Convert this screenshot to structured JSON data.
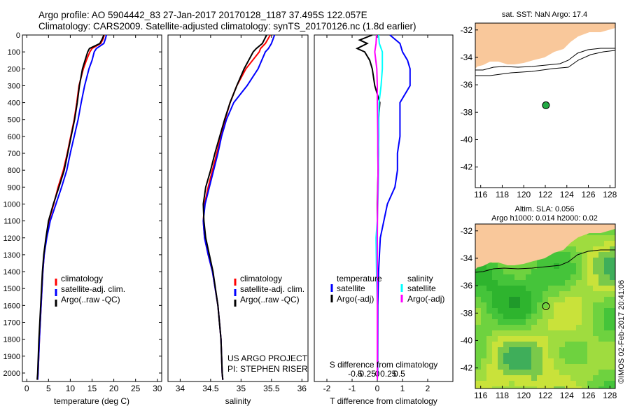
{
  "header": {
    "line1": "Argo profile: AO 5904442_83 27-Jan-2017 20170128_1187 37.495S 122.057E",
    "line2": "Climatology: CARS2009. Satellite-adjusted climatology: synTS_20170126.nc (1.8d earlier)"
  },
  "colors": {
    "climatology": "#ff0000",
    "satellite": "#0000ff",
    "argo": "#000000",
    "argo_salinity": "#ff00ff",
    "satellite_salinity": "#00ffff",
    "land": "#f9c89b",
    "argo_marker": "#22aa44"
  },
  "chart_data": [
    {
      "id": "temperature",
      "type": "line",
      "xlabel": "temperature (deg C)",
      "ylabel": "",
      "xlim": [
        -1,
        31
      ],
      "ylim": [
        2050,
        0
      ],
      "xticks": [
        0,
        5,
        10,
        15,
        20,
        25,
        30
      ],
      "yticks": [
        0,
        100,
        200,
        300,
        400,
        500,
        600,
        700,
        800,
        900,
        1000,
        1100,
        1200,
        1300,
        1400,
        1500,
        1600,
        1700,
        1800,
        1900,
        2000
      ],
      "legend": [
        "climatology",
        "satellite-adj. clim.",
        "Argo(..raw -QC)"
      ],
      "series": [
        {
          "name": "climatology",
          "color": "#ff0000",
          "depth": [
            0,
            20,
            50,
            80,
            100,
            150,
            200,
            300,
            400,
            500,
            600,
            700,
            800,
            900,
            1000,
            1100,
            1200,
            1300,
            1400,
            1600,
            1800,
            2000,
            2040
          ],
          "values": [
            17.8,
            17.6,
            17.0,
            15.0,
            14.5,
            13.7,
            13.0,
            12.0,
            11.5,
            10.9,
            10.1,
            9.3,
            8.4,
            7.2,
            6.2,
            5.1,
            4.5,
            4.0,
            3.7,
            3.3,
            2.9,
            2.6,
            2.5
          ]
        },
        {
          "name": "satellite-adj. clim.",
          "color": "#0000ff",
          "depth": [
            0,
            20,
            50,
            80,
            100,
            150,
            200,
            300,
            400,
            500,
            600,
            700,
            800,
            900,
            1000,
            1100,
            1200,
            1300,
            1400,
            1600,
            1800,
            2000,
            2040
          ],
          "values": [
            18.3,
            18.1,
            17.7,
            16.0,
            15.5,
            15.0,
            14.3,
            13.3,
            12.5,
            11.8,
            10.9,
            10.0,
            9.2,
            8.0,
            6.7,
            5.4,
            4.6,
            4.0,
            3.7,
            3.3,
            2.9,
            2.6,
            2.5
          ]
        },
        {
          "name": "Argo(..raw -QC)",
          "color": "#000000",
          "depth": [
            0,
            20,
            50,
            80,
            100,
            150,
            200,
            300,
            400,
            500,
            600,
            700,
            800,
            900,
            1000,
            1100,
            1200,
            1300,
            1400,
            1600,
            1800,
            2000,
            2040
          ],
          "values": [
            17.7,
            17.4,
            16.8,
            14.4,
            14.0,
            13.4,
            12.8,
            12.1,
            11.6,
            11.0,
            10.2,
            9.4,
            8.6,
            7.4,
            6.1,
            5.0,
            4.4,
            3.9,
            3.6,
            3.2,
            2.8,
            2.5,
            2.4
          ]
        }
      ]
    },
    {
      "id": "salinity",
      "type": "line",
      "xlabel": "salinity",
      "ylabel": "",
      "xlim": [
        33.8,
        36.1
      ],
      "ylim": [
        2050,
        0
      ],
      "xticks": [
        34,
        34.5,
        35,
        35.5,
        36
      ],
      "xtick_labels": [
        "34",
        "34.5",
        "35",
        "35.5",
        "36"
      ],
      "legend": [
        "climatology",
        "satellite-adj. clim.",
        "Argo(..raw -QC)"
      ],
      "annotation": [
        "US ARGO PROJECT",
        "PI: STEPHEN RISER"
      ],
      "series": [
        {
          "name": "climatology",
          "color": "#ff0000",
          "depth": [
            0,
            50,
            80,
            100,
            200,
            300,
            400,
            500,
            600,
            700,
            800,
            900,
            1000,
            1100,
            1200,
            1300,
            1400,
            1600,
            1800,
            2000,
            2040
          ],
          "values": [
            35.48,
            35.4,
            35.32,
            35.3,
            35.08,
            34.93,
            34.82,
            34.74,
            34.67,
            34.6,
            34.53,
            34.46,
            34.4,
            34.38,
            34.4,
            34.46,
            34.53,
            34.62,
            34.67,
            34.69,
            34.7
          ]
        },
        {
          "name": "satellite-adj. clim.",
          "color": "#0000ff",
          "depth": [
            0,
            50,
            80,
            100,
            200,
            300,
            400,
            500,
            600,
            700,
            800,
            900,
            1000,
            1100,
            1200,
            1300,
            1400,
            1600,
            1800,
            2000,
            2040
          ],
          "values": [
            35.55,
            35.5,
            35.45,
            35.4,
            35.28,
            35.1,
            34.88,
            34.76,
            34.68,
            34.62,
            34.55,
            34.48,
            34.41,
            34.38,
            34.4,
            34.46,
            34.53,
            34.62,
            34.67,
            34.69,
            34.7
          ]
        },
        {
          "name": "Argo(..raw -QC)",
          "color": "#000000",
          "depth": [
            0,
            50,
            80,
            100,
            200,
            300,
            400,
            500,
            600,
            700,
            800,
            900,
            1000,
            1100,
            1200,
            1300,
            1400,
            1600,
            1800,
            2000,
            2040
          ],
          "values": [
            35.42,
            35.35,
            35.25,
            35.2,
            35.05,
            34.93,
            34.82,
            34.73,
            34.65,
            34.57,
            34.5,
            34.42,
            34.38,
            34.39,
            34.42,
            34.48,
            34.54,
            34.62,
            34.67,
            34.69,
            34.7
          ]
        }
      ]
    },
    {
      "id": "difference",
      "type": "line",
      "xlabel": "T difference from climatology",
      "xlabel_top": "S difference from climatology",
      "xlim": [
        -2.5,
        3
      ],
      "ylim": [
        2050,
        0
      ],
      "xticks": [
        -2,
        -1,
        0,
        1,
        2
      ],
      "xtick_labels": [
        "-2",
        "-1",
        "0",
        "1",
        "2"
      ],
      "s_ticks": [
        -0.5,
        -0.25,
        0,
        0.25,
        0.5
      ],
      "s_tick_labels": [
        "-0.5",
        "-0.25",
        "0",
        "0.25",
        "0.5"
      ],
      "legend_left": [
        "temperature",
        "satellite",
        "Argo(-adj)"
      ],
      "legend_right": [
        "salinity",
        "satellite",
        "Argo(-adj)"
      ],
      "series": [
        {
          "name": "T satellite",
          "color": "#0000ff",
          "depth": [
            0,
            50,
            100,
            150,
            200,
            300,
            400,
            500,
            600,
            700,
            800,
            900,
            1000,
            1200,
            1400,
            1600,
            2000,
            2040
          ],
          "values": [
            0.5,
            0.9,
            1.0,
            1.2,
            1.3,
            1.3,
            0.9,
            0.9,
            0.9,
            0.8,
            0.8,
            0.7,
            0.4,
            0.12,
            0.05,
            0.02,
            0.01,
            0.0
          ]
        },
        {
          "name": "T Argo(-adj)",
          "color": "#000000",
          "depth": [
            0,
            30,
            50,
            80,
            100,
            150,
            200,
            300,
            400,
            500,
            700,
            1000,
            1200,
            1400,
            1600,
            2000,
            2040
          ],
          "values": [
            -0.2,
            -0.7,
            -0.4,
            -0.8,
            -0.5,
            -0.3,
            -0.2,
            -0.1,
            0.1,
            0.05,
            0.05,
            0.0,
            0.0,
            0.0,
            0.0,
            0.0,
            0.0
          ]
        },
        {
          "name": "S satellite",
          "color": "#00ffff",
          "depth": [
            0,
            50,
            100,
            200,
            300,
            400,
            500,
            600,
            700,
            800,
            900,
            1000,
            1100,
            1200,
            1400,
            1600,
            2000,
            2040
          ],
          "values": [
            0.05,
            0.08,
            0.2,
            0.2,
            0.15,
            0.07,
            0.06,
            0.06,
            0.05,
            0.05,
            0.04,
            0.02,
            0.0,
            -0.05,
            -0.03,
            0.0,
            0.0,
            0.0
          ]
        },
        {
          "name": "S Argo(-adj)",
          "color": "#ff00ff",
          "depth": [
            0,
            50,
            100,
            200,
            300,
            400,
            500,
            600,
            700,
            800,
            1000,
            1200,
            1400,
            1600,
            2000,
            2040
          ],
          "values": [
            -0.03,
            -0.05,
            -0.1,
            -0.02,
            0.0,
            0.0,
            0.01,
            0.02,
            0.02,
            0.03,
            0.01,
            0.0,
            0.0,
            0.0,
            0.0,
            0.0
          ]
        }
      ]
    },
    {
      "id": "sst_map",
      "type": "heatmap",
      "title": "sat. SST: NaN Argo: 17.4",
      "xlim": [
        115.5,
        128.5
      ],
      "ylim": [
        -43.5,
        -31.5
      ],
      "xticks": [
        116,
        118,
        120,
        122,
        124,
        126,
        128
      ],
      "yticks": [
        -32,
        -34,
        -36,
        -38,
        -40,
        -42
      ],
      "argo_position": {
        "lon": 122.057,
        "lat": -37.495
      }
    },
    {
      "id": "sla_map",
      "type": "heatmap",
      "title": "Altim. SLA: 0.056",
      "subtitle": "Argo h1000: 0.014 h2000: 0.02",
      "xlim": [
        115.5,
        128.5
      ],
      "ylim": [
        -43.5,
        -31.5
      ],
      "xticks": [
        116,
        118,
        120,
        122,
        124,
        126,
        128
      ],
      "yticks": [
        -32,
        -34,
        -36,
        -38,
        -40,
        -42
      ],
      "argo_position": {
        "lon": 122.057,
        "lat": -37.495
      }
    }
  ],
  "side_label": "©IMOS 02-Feb-2017 20:41:06"
}
